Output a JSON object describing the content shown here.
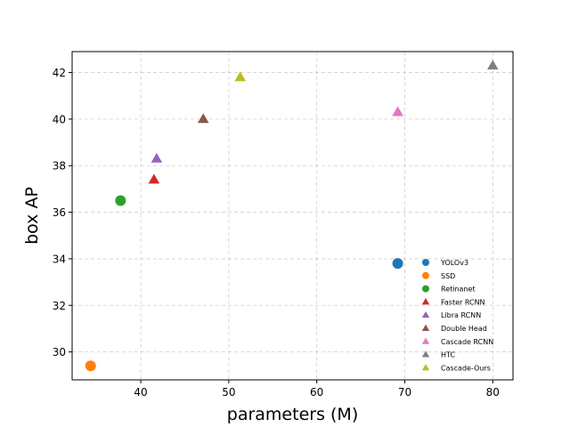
{
  "chart_data": {
    "type": "scatter",
    "title": "",
    "xlabel": "parameters (M)",
    "ylabel": "box AP",
    "xlim": [
      32.2,
      82.3
    ],
    "ylim": [
      28.8,
      42.9
    ],
    "xticks": [
      40,
      50,
      60,
      70,
      80
    ],
    "yticks": [
      30,
      32,
      34,
      36,
      38,
      40,
      42
    ],
    "grid": true,
    "legend_position": "lower-right",
    "series": [
      {
        "name": "YOLOv3",
        "marker": "circle",
        "color": "#1f77b4",
        "x": 69.2,
        "y": 33.8
      },
      {
        "name": "SSD",
        "marker": "circle",
        "color": "#ff7f0e",
        "x": 34.3,
        "y": 29.4
      },
      {
        "name": "Retinanet",
        "marker": "circle",
        "color": "#2ca02c",
        "x": 37.7,
        "y": 36.5
      },
      {
        "name": "Faster RCNN",
        "marker": "triangle",
        "color": "#d62728",
        "x": 41.5,
        "y": 37.4
      },
      {
        "name": "Libra RCNN",
        "marker": "triangle",
        "color": "#9467bd",
        "x": 41.8,
        "y": 38.3
      },
      {
        "name": "Double Head",
        "marker": "triangle",
        "color": "#8c564b",
        "x": 47.1,
        "y": 40.0
      },
      {
        "name": "Cascade RCNN",
        "marker": "triangle",
        "color": "#e377c2",
        "x": 69.2,
        "y": 40.3
      },
      {
        "name": "HTC",
        "marker": "triangle",
        "color": "#7f7f7f",
        "x": 80.0,
        "y": 42.3
      },
      {
        "name": "Cascade-Ours",
        "marker": "triangle",
        "color": "#bcbd22",
        "x": 51.3,
        "y": 41.8
      }
    ]
  }
}
